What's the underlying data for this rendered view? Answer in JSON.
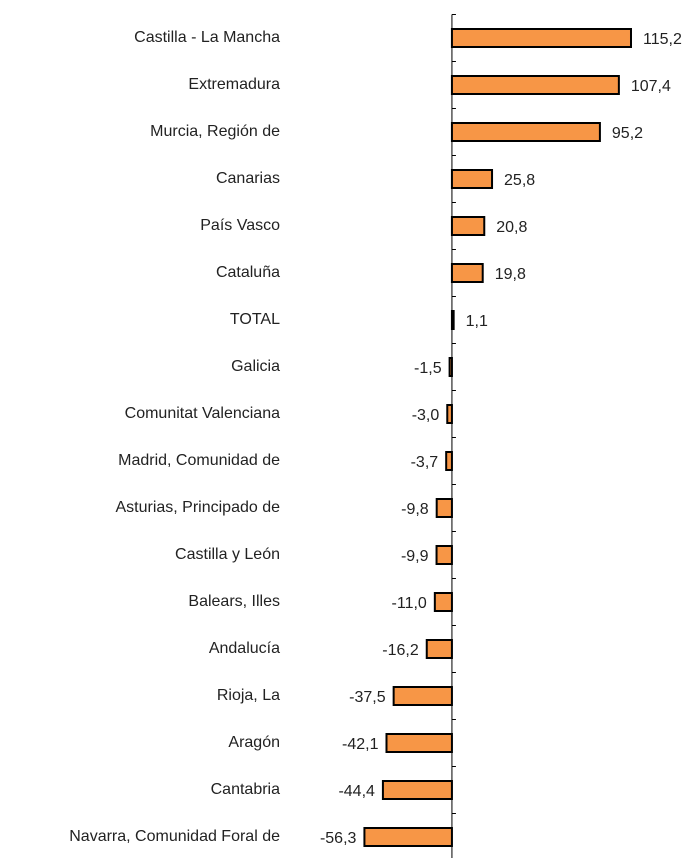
{
  "chart_data": {
    "type": "hbar",
    "categories": [
      "Castilla - La Mancha",
      "Extremadura",
      "Murcia, Región de",
      "Canarias",
      "País Vasco",
      "Cataluña",
      "TOTAL",
      "Galicia",
      "Comunitat Valenciana",
      "Madrid, Comunidad de",
      "Asturias, Principado de",
      "Castilla y León",
      "Balears, Illes",
      "Andalucía",
      "Rioja, La",
      "Aragón",
      "Cantabria",
      "Navarra, Comunidad Foral de"
    ],
    "values": [
      115.2,
      107.4,
      95.2,
      25.8,
      20.8,
      19.8,
      1.1,
      -1.5,
      -3.0,
      -3.7,
      -9.8,
      -9.9,
      -11.0,
      -16.2,
      -37.5,
      -42.1,
      -44.4,
      -56.3
    ],
    "value_labels": [
      "115,2",
      "107,4",
      "95,2",
      "25,8",
      "20,8",
      "19,8",
      "1,1",
      "-1,5",
      "-3,0",
      "-3,7",
      "-9,8",
      "-9,9",
      "-11,0",
      "-16,2",
      "-37,5",
      "-42,1",
      "-44,4",
      "-56,3"
    ],
    "color": "#f79646",
    "xlim": [
      -100,
      130
    ]
  }
}
